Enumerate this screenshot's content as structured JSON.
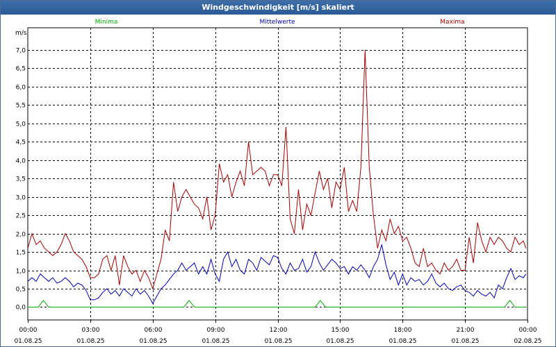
{
  "window": {
    "title": "Windgeschwindigkeit [m/s] skaliert"
  },
  "colors": {
    "minima": "#00aa00",
    "mittel": "#0000b0",
    "maxima": "#a00000",
    "grid": "#000000",
    "title_bg": "#2f609c"
  },
  "chart_data": {
    "type": "line",
    "ylabel": "m/s",
    "ylim": [
      -0.35,
      7.6
    ],
    "yticks": [
      0.0,
      0.5,
      1.0,
      1.5,
      2.0,
      2.5,
      3.0,
      3.5,
      4.0,
      4.5,
      5.0,
      5.5,
      6.0,
      6.5,
      7.0
    ],
    "ytick_labels": [
      "0,0",
      "0,5",
      "1,0",
      "1,5",
      "2,0",
      "2,5",
      "3,0",
      "3,5",
      "4,0",
      "4,5",
      "5,0",
      "5,5",
      "6,0",
      "6,5",
      "7,0"
    ],
    "xlim": [
      0,
      24
    ],
    "xticks": [
      0,
      3,
      6,
      9,
      12,
      15,
      18,
      21,
      24
    ],
    "xtick_time_labels": [
      "00:00",
      "03:00",
      "06:00",
      "09:00",
      "12:00",
      "15:00",
      "18:00",
      "21:00",
      "00:00"
    ],
    "xtick_date_labels": [
      "01.08.25",
      "01.08.25",
      "01.08.25",
      "01.08.25",
      "01.08.25",
      "01.08.25",
      "01.08.25",
      "01.08.25",
      "02.08.25"
    ],
    "series": [
      {
        "name": "Minima",
        "color_key": "minima",
        "x": [
          0,
          0.5,
          0.75,
          1.0,
          7.5,
          7.75,
          8.0,
          13.8,
          14.05,
          14.3,
          22.9,
          23.15,
          23.4,
          23.9
        ],
        "values": [
          0,
          0,
          0.18,
          0,
          0,
          0.18,
          0,
          0,
          0.18,
          0,
          0,
          0.18,
          0,
          0
        ]
      },
      {
        "name": "Mittelwerte",
        "color_key": "mittel",
        "x": [
          0,
          0.2,
          0.4,
          0.6,
          0.8,
          1.0,
          1.2,
          1.4,
          1.6,
          1.8,
          2.0,
          2.2,
          2.4,
          2.6,
          2.8,
          3.0,
          3.2,
          3.4,
          3.6,
          3.8,
          4.0,
          4.2,
          4.4,
          4.6,
          4.8,
          5.0,
          5.2,
          5.4,
          5.6,
          5.8,
          6.0,
          6.2,
          6.4,
          6.6,
          6.8,
          7.0,
          7.2,
          7.4,
          7.6,
          7.8,
          8.0,
          8.2,
          8.4,
          8.6,
          8.8,
          9.0,
          9.2,
          9.4,
          9.6,
          9.8,
          10.0,
          10.2,
          10.4,
          10.6,
          10.8,
          11.0,
          11.2,
          11.4,
          11.6,
          11.8,
          12.0,
          12.2,
          12.4,
          12.6,
          12.8,
          13.0,
          13.2,
          13.4,
          13.6,
          13.8,
          14.0,
          14.2,
          14.4,
          14.6,
          14.8,
          15.0,
          15.2,
          15.4,
          15.6,
          15.8,
          16.0,
          16.2,
          16.4,
          16.6,
          16.8,
          17.0,
          17.2,
          17.4,
          17.6,
          17.8,
          18.0,
          18.2,
          18.4,
          18.6,
          18.8,
          19.0,
          19.2,
          19.4,
          19.6,
          19.8,
          20.0,
          20.2,
          20.4,
          20.6,
          20.8,
          21.0,
          21.2,
          21.4,
          21.6,
          21.8,
          22.0,
          22.2,
          22.4,
          22.6,
          22.8,
          23.0,
          23.2,
          23.4,
          23.6,
          23.8
        ],
        "values": [
          0.7,
          0.8,
          0.7,
          0.9,
          0.8,
          0.7,
          0.8,
          0.65,
          0.7,
          0.8,
          0.7,
          0.55,
          0.65,
          0.6,
          0.45,
          0.2,
          0.2,
          0.25,
          0.4,
          0.5,
          0.35,
          0.45,
          0.3,
          0.5,
          0.4,
          0.3,
          0.5,
          0.35,
          0.45,
          0.3,
          0.1,
          0.3,
          0.5,
          0.6,
          0.75,
          0.9,
          1.0,
          1.2,
          1.0,
          1.1,
          1.2,
          0.9,
          1.1,
          0.9,
          1.3,
          0.9,
          0.7,
          1.3,
          1.5,
          1.1,
          1.3,
          1.0,
          0.9,
          1.3,
          1.2,
          1.0,
          1.35,
          1.25,
          1.15,
          1.4,
          1.35,
          1.05,
          0.9,
          1.2,
          1.0,
          1.05,
          1.3,
          0.95,
          1.1,
          1.5,
          1.2,
          1.0,
          1.15,
          1.3,
          1.2,
          1.05,
          1.1,
          0.9,
          1.1,
          1.0,
          1.15,
          1.0,
          0.8,
          1.1,
          1.3,
          1.7,
          1.15,
          0.75,
          0.95,
          0.6,
          0.9,
          0.6,
          0.8,
          0.7,
          0.75,
          0.6,
          0.7,
          0.9,
          0.65,
          0.55,
          0.65,
          0.5,
          0.45,
          0.55,
          0.6,
          0.45,
          0.4,
          0.3,
          0.45,
          0.35,
          0.3,
          0.4,
          0.25,
          0.6,
          0.5,
          0.8,
          1.05,
          0.75,
          0.85,
          0.8
        ],
        "values_end": 0.9
      },
      {
        "name": "Maxima",
        "color_key": "maxima",
        "x": [
          0,
          0.2,
          0.4,
          0.6,
          0.8,
          1.0,
          1.2,
          1.4,
          1.6,
          1.8,
          2.0,
          2.2,
          2.4,
          2.6,
          2.8,
          3.0,
          3.2,
          3.4,
          3.6,
          3.8,
          4.0,
          4.2,
          4.4,
          4.6,
          4.8,
          5.0,
          5.2,
          5.4,
          5.6,
          5.8,
          6.0,
          6.2,
          6.4,
          6.6,
          6.8,
          7.0,
          7.2,
          7.4,
          7.6,
          7.8,
          8.0,
          8.2,
          8.4,
          8.6,
          8.8,
          9.0,
          9.2,
          9.4,
          9.6,
          9.8,
          10.0,
          10.2,
          10.4,
          10.6,
          10.8,
          11.0,
          11.2,
          11.4,
          11.6,
          11.8,
          12.0,
          12.2,
          12.4,
          12.6,
          12.8,
          13.0,
          13.2,
          13.4,
          13.6,
          13.8,
          14.0,
          14.2,
          14.4,
          14.6,
          14.8,
          15.0,
          15.2,
          15.4,
          15.6,
          15.8,
          16.0,
          16.2,
          16.4,
          16.6,
          16.8,
          17.0,
          17.2,
          17.4,
          17.6,
          17.8,
          18.0,
          18.2,
          18.4,
          18.6,
          18.8,
          19.0,
          19.2,
          19.4,
          19.6,
          19.8,
          20.0,
          20.2,
          20.4,
          20.6,
          20.8,
          21.0,
          21.2,
          21.4,
          21.6,
          21.8,
          22.0,
          22.2,
          22.4,
          22.6,
          22.8,
          23.0,
          23.2,
          23.4,
          23.6,
          23.8
        ],
        "values": [
          1.6,
          2.0,
          1.7,
          1.8,
          1.6,
          1.5,
          1.4,
          1.5,
          1.7,
          2.0,
          1.8,
          1.5,
          1.4,
          1.3,
          1.1,
          0.8,
          0.8,
          0.9,
          1.3,
          1.4,
          1.0,
          1.4,
          0.6,
          1.4,
          1.1,
          0.9,
          1.0,
          0.7,
          1.0,
          0.8,
          0.5,
          0.9,
          1.3,
          2.1,
          1.8,
          3.4,
          2.6,
          3.0,
          3.2,
          3.0,
          2.8,
          2.7,
          2.4,
          3.0,
          2.1,
          2.5,
          3.9,
          3.4,
          3.6,
          3.0,
          3.4,
          3.7,
          3.3,
          4.5,
          3.6,
          3.7,
          3.8,
          3.7,
          3.3,
          3.6,
          3.6,
          3.3,
          4.9,
          2.4,
          2.0,
          3.2,
          2.1,
          2.8,
          2.5,
          3.1,
          3.7,
          3.2,
          3.5,
          2.7,
          3.4,
          3.2,
          3.8,
          2.6,
          2.9,
          2.6,
          3.8,
          7.0,
          3.8,
          2.5,
          1.6,
          2.1,
          1.8,
          2.4,
          2.0,
          2.2,
          1.8,
          1.9,
          1.6,
          1.2,
          1.1,
          1.6,
          1.1,
          1.2,
          1.0,
          0.9,
          1.2,
          1.0,
          1.1,
          1.3,
          1.0,
          1.0,
          1.9,
          1.2,
          2.3,
          1.8,
          1.5,
          1.9,
          1.7,
          1.9,
          1.8,
          1.6,
          1.5,
          1.9,
          1.7,
          1.8
        ],
        "values_end": 1.6
      }
    ]
  }
}
